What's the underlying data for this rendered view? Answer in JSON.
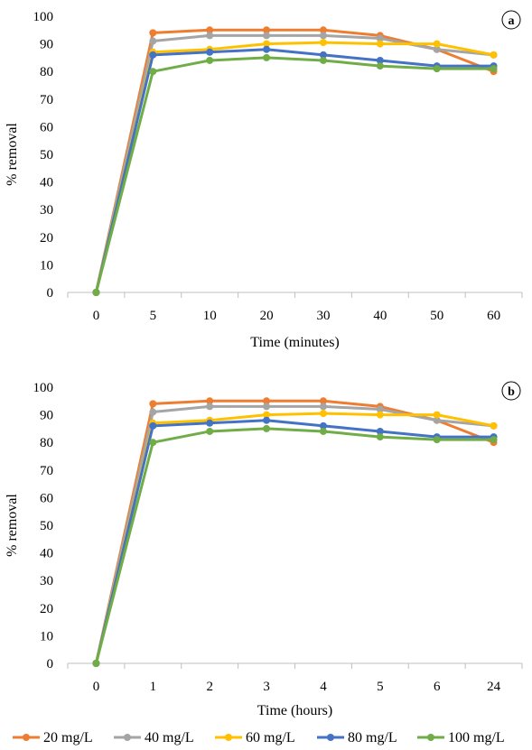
{
  "chart_data": [
    {
      "type": "line",
      "panel_label": "a",
      "xlabel": "Time (minutes)",
      "ylabel": "% removal",
      "ylim": [
        0,
        100
      ],
      "yticks": [
        0,
        10,
        20,
        30,
        40,
        50,
        60,
        70,
        80,
        90,
        100
      ],
      "grid": false,
      "categories": [
        "0",
        "5",
        "10",
        "20",
        "30",
        "40",
        "50",
        "60"
      ],
      "series": [
        {
          "name": "20 mg/L",
          "color": "#ED7D31",
          "values": [
            0,
            94,
            95,
            95,
            95,
            93,
            88,
            80
          ]
        },
        {
          "name": "40 mg/L",
          "color": "#A5A5A5",
          "values": [
            0,
            91,
            93,
            93,
            93,
            92,
            88,
            86
          ]
        },
        {
          "name": "60 mg/L",
          "color": "#FFC000",
          "values": [
            0,
            87,
            88,
            90,
            90.5,
            90,
            90,
            86
          ]
        },
        {
          "name": "80 mg/L",
          "color": "#4472C4",
          "values": [
            0,
            86,
            87,
            88,
            86,
            84,
            82,
            82
          ]
        },
        {
          "name": "100 mg/L",
          "color": "#70AD47",
          "values": [
            0,
            80,
            84,
            85,
            84,
            82,
            81,
            81
          ]
        }
      ]
    },
    {
      "type": "line",
      "panel_label": "b",
      "xlabel": "Time (hours)",
      "ylabel": "% removal",
      "ylim": [
        0,
        100
      ],
      "yticks": [
        0,
        10,
        20,
        30,
        40,
        50,
        60,
        70,
        80,
        90,
        100
      ],
      "grid": false,
      "categories": [
        "0",
        "1",
        "2",
        "3",
        "4",
        "5",
        "6",
        "24"
      ],
      "series": [
        {
          "name": "20 mg/L",
          "color": "#ED7D31",
          "values": [
            0,
            94,
            95,
            95,
            95,
            93,
            88,
            80
          ]
        },
        {
          "name": "40 mg/L",
          "color": "#A5A5A5",
          "values": [
            0,
            91,
            93,
            93,
            93,
            92,
            88,
            86
          ]
        },
        {
          "name": "60 mg/L",
          "color": "#FFC000",
          "values": [
            0,
            87,
            88,
            90,
            90.5,
            90,
            90,
            86
          ]
        },
        {
          "name": "80 mg/L",
          "color": "#4472C4",
          "values": [
            0,
            86,
            87,
            88,
            86,
            84,
            82,
            82
          ]
        },
        {
          "name": "100 mg/L",
          "color": "#70AD47",
          "values": [
            0,
            80,
            84,
            85,
            84,
            82,
            81,
            81
          ]
        }
      ]
    }
  ],
  "legend": {
    "position": "bottom",
    "items": [
      {
        "label": "20 mg/L",
        "color": "#ED7D31"
      },
      {
        "label": "40 mg/L",
        "color": "#A5A5A5"
      },
      {
        "label": "60 mg/L",
        "color": "#FFC000"
      },
      {
        "label": "80 mg/L",
        "color": "#4472C4"
      },
      {
        "label": "100 mg/L",
        "color": "#70AD47"
      }
    ]
  }
}
